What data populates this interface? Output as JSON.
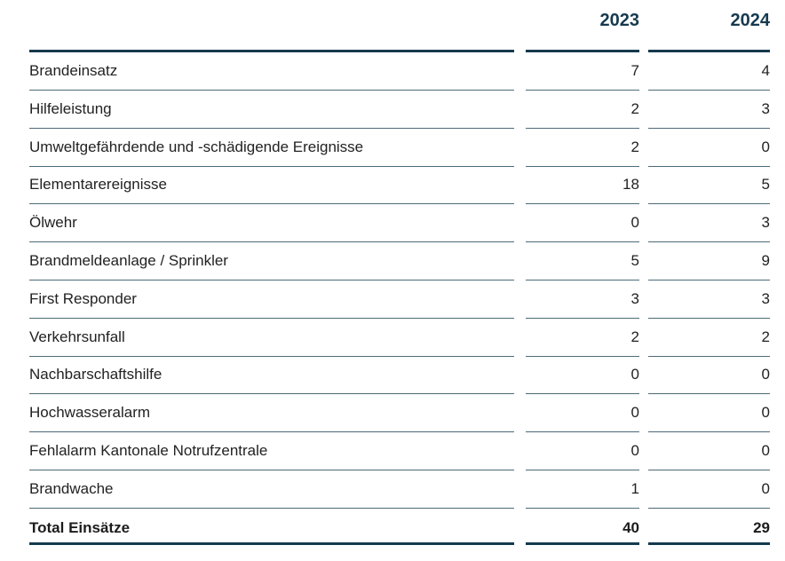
{
  "header": {
    "year1": "2023",
    "year2": "2024"
  },
  "rows": [
    {
      "label": "Brandeinsatz",
      "y2023": "7",
      "y2024": "4"
    },
    {
      "label": "Hilfeleistung",
      "y2023": "2",
      "y2024": "3"
    },
    {
      "label": "Umweltgefährdende und -schädigende Ereignisse",
      "y2023": "2",
      "y2024": "0"
    },
    {
      "label": "Elementarereignisse",
      "y2023": "18",
      "y2024": "5"
    },
    {
      "label": "Ölwehr",
      "y2023": "0",
      "y2024": "3"
    },
    {
      "label": "Brandmeldeanlage / Sprinkler",
      "y2023": "5",
      "y2024": "9"
    },
    {
      "label": "First Responder",
      "y2023": "3",
      "y2024": "3"
    },
    {
      "label": "Verkehrsunfall",
      "y2023": "2",
      "y2024": "2"
    },
    {
      "label": "Nachbarschaftshilfe",
      "y2023": "0",
      "y2024": "0"
    },
    {
      "label": "Hochwasseralarm",
      "y2023": "0",
      "y2024": "0"
    },
    {
      "label": "Fehlalarm Kantonale Notrufzentrale",
      "y2023": "0",
      "y2024": "0"
    },
    {
      "label": "Brandwache",
      "y2023": "1",
      "y2024": "0"
    }
  ],
  "total": {
    "label": "Total Einsätze",
    "y2023": "40",
    "y2024": "29"
  }
}
